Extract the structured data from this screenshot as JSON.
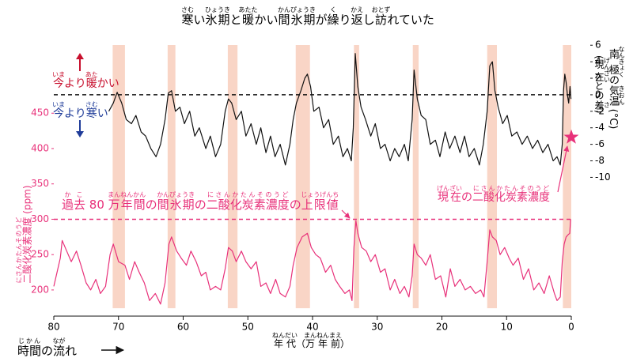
{
  "chart_data": {
    "type": "line",
    "title": [
      {
        "text": "寒",
        "ruby": "さむ"
      },
      {
        "text": "い"
      },
      {
        "text": "氷期",
        "ruby": "ひょうき"
      },
      {
        "text": "と"
      },
      {
        "text": "暖",
        "ruby": "あたた"
      },
      {
        "text": "かい"
      },
      {
        "text": "間氷期",
        "ruby": "かんぴょうき"
      },
      {
        "text": "が"
      },
      {
        "text": "繰",
        "ruby": "く"
      },
      {
        "text": "り"
      },
      {
        "text": "返",
        "ruby": "かえ"
      },
      {
        "text": "し"
      },
      {
        "text": "訪",
        "ruby": "おとず"
      },
      {
        "text": "れていた"
      }
    ],
    "x_label": [
      {
        "text": "年代",
        "ruby": "ねんだい"
      },
      {
        "text": "（"
      },
      {
        "text": "万年前",
        "ruby": "まんねんまえ"
      },
      {
        "text": "）"
      }
    ],
    "time_flow": [
      {
        "text": "時間",
        "ruby": "じかん"
      },
      {
        "text": "の"
      },
      {
        "text": "流",
        "ruby": "なが"
      },
      {
        "text": "れ"
      }
    ],
    "xlim": [
      80,
      0
    ],
    "xticks": [
      80,
      70,
      60,
      50,
      40,
      30,
      20,
      10,
      0
    ],
    "ylim": [
      163,
      552
    ],
    "yticks": [
      200,
      250,
      300,
      350,
      400,
      450
    ],
    "y_label": [
      {
        "text": "二酸化炭素濃度",
        "ruby": "にさんかたんそのうど"
      },
      {
        "text": " (ppm)"
      }
    ],
    "y2lim": [
      -26.8,
      6.5
    ],
    "y2ticks": [
      6,
      4,
      2,
      0,
      -2,
      -4,
      -6,
      -8,
      -10
    ],
    "y2_label": [
      {
        "text": "南極",
        "ruby": "なんきょく"
      },
      {
        "text": "の"
      },
      {
        "text": "気温",
        "ruby": "きおん"
      },
      {
        "text": " (°C)"
      }
    ],
    "y2_sublabel": [
      {
        "text": "("
      },
      {
        "text": "現在",
        "ruby": "げんざい"
      },
      {
        "text": "との"
      },
      {
        "text": "差",
        "ruby": "さ"
      },
      {
        "text": ")"
      }
    ],
    "warmer": [
      {
        "text": "今",
        "ruby": "いま"
      },
      {
        "text": "より"
      },
      {
        "text": "暖",
        "ruby": "あた"
      },
      {
        "text": "かい"
      }
    ],
    "colder": [
      {
        "text": "今",
        "ruby": "いま"
      },
      {
        "text": "より"
      },
      {
        "text": "寒",
        "ruby": "さむ"
      },
      {
        "text": "い"
      }
    ],
    "co2_max_label": [
      {
        "text": "過去",
        "ruby": "かこ"
      },
      {
        "text": " 80 "
      },
      {
        "text": "万年間",
        "ruby": "まんねんかん"
      },
      {
        "text": "の"
      },
      {
        "text": "間氷期",
        "ruby": "かんぴょうき"
      },
      {
        "text": "の"
      },
      {
        "text": "二酸化炭素濃度",
        "ruby": "にさんかたんそのうど"
      },
      {
        "text": "の"
      },
      {
        "text": "上限値",
        "ruby": "じょうげんち"
      }
    ],
    "current_label": [
      {
        "text": "現在",
        "ruby": "げんざい"
      },
      {
        "text": "の"
      },
      {
        "text": "二酸化炭素濃度",
        "ruby": "にさんかたんそのうど"
      }
    ],
    "bands": [
      [
        70.9,
        69.0
      ],
      [
        62.4,
        61.2
      ],
      [
        53.1,
        51.6
      ],
      [
        42.6,
        40.4
      ],
      [
        33.6,
        32.8
      ],
      [
        24.5,
        23.6
      ],
      [
        13.0,
        11.5
      ],
      [
        1.3,
        0
      ]
    ],
    "band_color": "#f7cbb8",
    "reference_lines": [
      {
        "axis": "y2",
        "value": 0,
        "color": "#111111"
      },
      {
        "axis": "y",
        "value": 300,
        "color": "#e8317a"
      }
    ],
    "current": {
      "x": 0,
      "value": 416,
      "color": "#e8317a"
    },
    "series": [
      {
        "color": "#111111",
        "axis": "y2",
        "x": [
          71.5,
          70.8,
          70.2,
          69.5,
          68.8,
          68,
          67.3,
          66.5,
          65.8,
          65,
          64.2,
          63.5,
          62.8,
          62.3,
          61.8,
          61.2,
          60.5,
          59.8,
          59,
          58.2,
          57.5,
          56.5,
          55.8,
          55,
          54.2,
          53.5,
          53,
          52.5,
          51.8,
          51,
          50.3,
          49.5,
          48.7,
          48,
          47.2,
          46.5,
          45.8,
          45,
          44.2,
          43.5,
          43,
          42.5,
          41.8,
          41.2,
          40.8,
          40.3,
          39.8,
          39,
          38.3,
          37.5,
          36.8,
          36,
          35.3,
          34.6,
          34,
          33.7,
          33.4,
          33,
          32.5,
          31.8,
          31,
          30.3,
          29.5,
          28.8,
          28,
          27.3,
          26.6,
          25.8,
          25.2,
          24.6,
          24.3,
          23.8,
          23.2,
          22.5,
          21.8,
          21,
          20.3,
          19.5,
          18.8,
          18,
          17.2,
          16.5,
          15.8,
          15,
          14.2,
          13.6,
          13,
          12.6,
          12.2,
          11.8,
          11.3,
          10.6,
          9.9,
          9.2,
          8.4,
          7.6,
          6.8,
          6,
          5.2,
          4.4,
          3.6,
          2.8,
          2.2,
          1.7,
          1.4,
          1.2,
          1.0,
          0.8,
          0.6,
          0.4,
          0.2,
          0.05
        ],
        "values": [
          -2,
          -1,
          0.3,
          -1,
          -3,
          -3.5,
          -2.5,
          -4.5,
          -5,
          -6.5,
          -7.5,
          -6,
          -3,
          0.2,
          0.5,
          -2,
          -1.5,
          -3.5,
          -2,
          -5,
          -4,
          -6.5,
          -5,
          -7.5,
          -6,
          -2,
          -0.5,
          -1,
          -3,
          -2,
          -5,
          -3.5,
          -6,
          -4,
          -7,
          -5,
          -7.5,
          -6,
          -8.5,
          -6,
          -3,
          -1,
          0.5,
          2,
          2.5,
          1,
          -2,
          -1.5,
          -4,
          -3,
          -6,
          -5,
          -7.5,
          -6.5,
          -8,
          -4,
          5,
          1,
          -1.5,
          -3,
          -5,
          -3.5,
          -6.5,
          -6,
          -8,
          -6.5,
          -7.5,
          -6,
          -8,
          -3,
          3,
          -0.5,
          -2.5,
          -3,
          -6,
          -5.5,
          -7.5,
          -4.5,
          -6.5,
          -5,
          -7,
          -5,
          -7.5,
          -6.5,
          -8.5,
          -6,
          -2,
          3.5,
          4,
          0.5,
          -1.5,
          -3.5,
          -2.5,
          -5,
          -4.5,
          -6,
          -5,
          -6.5,
          -5.5,
          -7,
          -6,
          -8,
          -7.5,
          -8.5,
          -6,
          0.5,
          2.5,
          1.5,
          0,
          -1,
          1,
          -0.5
        ]
      },
      {
        "color": "#e8317a",
        "axis": "y",
        "x": [
          80,
          79,
          78.7,
          78,
          77.3,
          76.5,
          75.8,
          75,
          74.3,
          73.5,
          72.8,
          72,
          71.3,
          70.8,
          70,
          69,
          68.3,
          67.5,
          66.8,
          66,
          65.2,
          64.3,
          63.5,
          62.8,
          62.2,
          61.8,
          61,
          60.3,
          59.5,
          58.8,
          58,
          57.2,
          56.5,
          55.8,
          55,
          54.2,
          53.5,
          53,
          52.4,
          51.8,
          51,
          50.3,
          49.5,
          48.7,
          48,
          47.2,
          46.5,
          45.7,
          45,
          44.2,
          43.5,
          43,
          42.4,
          41.6,
          40.8,
          40.2,
          39.5,
          38.8,
          38,
          37.2,
          36.5,
          35.8,
          35,
          34.3,
          33.9,
          33.6,
          33.3,
          33,
          32.4,
          31.7,
          31,
          30.3,
          29.5,
          28.8,
          28,
          27.3,
          26.5,
          25.8,
          25.1,
          24.6,
          24.3,
          23.8,
          23.2,
          22.5,
          21.8,
          21,
          20.2,
          19.4,
          18.7,
          18,
          17.2,
          16.4,
          15.6,
          14.8,
          14,
          13.5,
          13,
          12.6,
          12.2,
          11.6,
          11,
          10.3,
          9.6,
          9,
          8.2,
          7.4,
          6.6,
          5.8,
          5,
          4.2,
          3.4,
          2.6,
          2.2,
          1.7,
          1.4,
          1.1,
          0.8,
          0.5,
          0.25,
          0.1
        ],
        "values": [
          205,
          245,
          270,
          255,
          240,
          255,
          235,
          210,
          200,
          215,
          195,
          205,
          250,
          265,
          240,
          235,
          215,
          240,
          225,
          210,
          185,
          195,
          180,
          210,
          265,
          275,
          255,
          245,
          235,
          255,
          240,
          220,
          225,
          200,
          205,
          200,
          230,
          260,
          255,
          240,
          255,
          240,
          230,
          240,
          205,
          210,
          195,
          215,
          195,
          190,
          205,
          235,
          260,
          275,
          280,
          260,
          250,
          245,
          225,
          235,
          215,
          205,
          195,
          200,
          185,
          260,
          298,
          280,
          260,
          255,
          240,
          250,
          225,
          230,
          200,
          215,
          195,
          205,
          190,
          220,
          265,
          250,
          245,
          235,
          250,
          215,
          220,
          190,
          230,
          205,
          215,
          200,
          205,
          195,
          200,
          190,
          240,
          285,
          275,
          270,
          250,
          260,
          245,
          235,
          245,
          215,
          230,
          200,
          210,
          195,
          220,
          195,
          185,
          190,
          240,
          265,
          275,
          278,
          280,
          300
        ]
      }
    ]
  }
}
